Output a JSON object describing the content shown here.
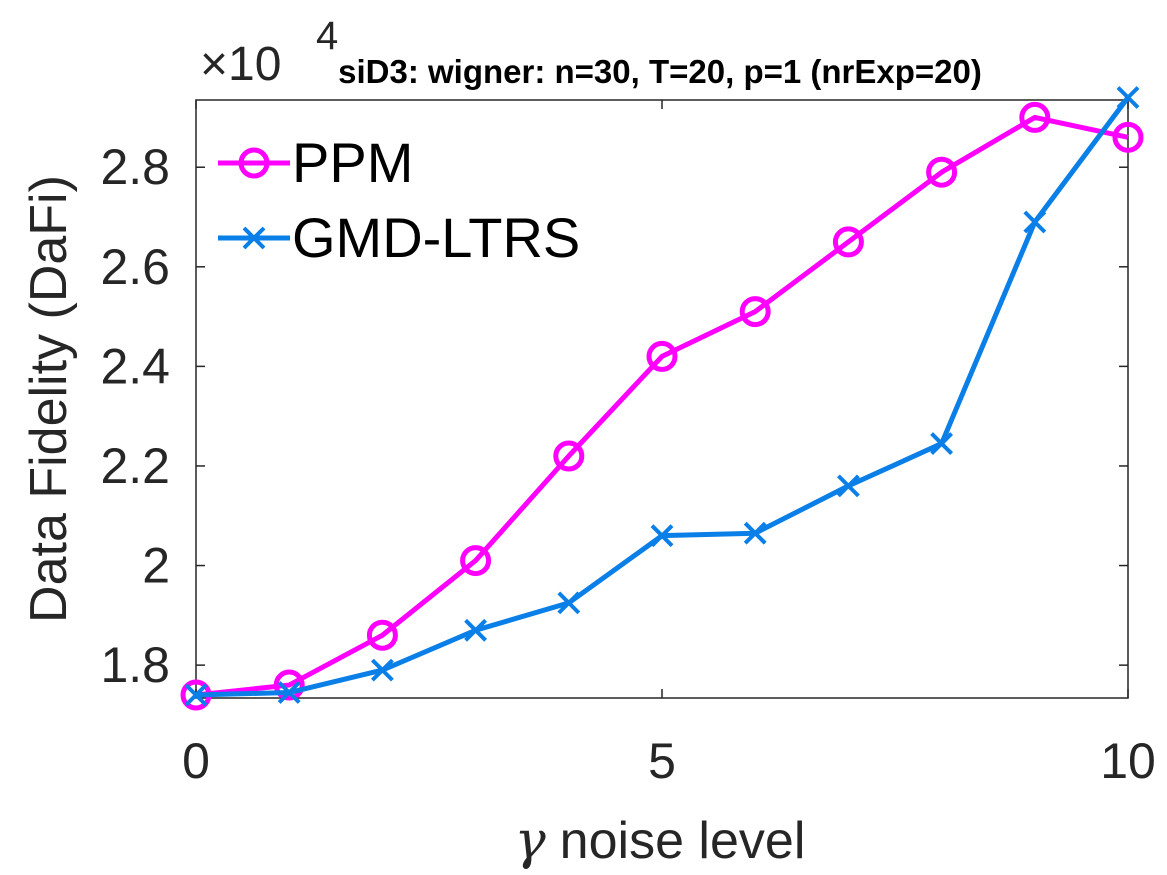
{
  "chart_data": {
    "type": "line",
    "title": "siD3: wigner: n=30, T=20, p=1 (nrExp=20)",
    "xlabel_symbol": "γ",
    "xlabel": "noise level",
    "ylabel": "Data Fidelity (DaFi)",
    "y_exponent_prefix": "×10",
    "y_exponent": "4",
    "xlim": [
      0,
      10
    ],
    "ylim": [
      1.734,
      2.935
    ],
    "xticks": [
      0,
      5,
      10
    ],
    "xtick_labels": [
      "0",
      "5",
      "10"
    ],
    "yticks": [
      1.8,
      2.0,
      2.2,
      2.4,
      2.6,
      2.8
    ],
    "ytick_labels": [
      "1.8",
      "2",
      "2.2",
      "2.4",
      "2.6",
      "2.8"
    ],
    "grid": false,
    "legend_position": "top-left",
    "x": [
      0,
      1,
      2,
      3,
      4,
      5,
      6,
      7,
      8,
      9,
      10
    ],
    "series": [
      {
        "name": "PPM",
        "color": "#ff00ff",
        "marker": "circle",
        "values": [
          1.74,
          1.76,
          1.86,
          2.01,
          2.22,
          2.42,
          2.51,
          2.65,
          2.79,
          2.9,
          2.86
        ]
      },
      {
        "name": "GMD-LTRS",
        "color": "#0a7fe8",
        "marker": "x",
        "values": [
          1.74,
          1.745,
          1.79,
          1.87,
          1.925,
          2.06,
          2.065,
          2.16,
          2.245,
          2.69,
          2.94
        ]
      }
    ]
  }
}
